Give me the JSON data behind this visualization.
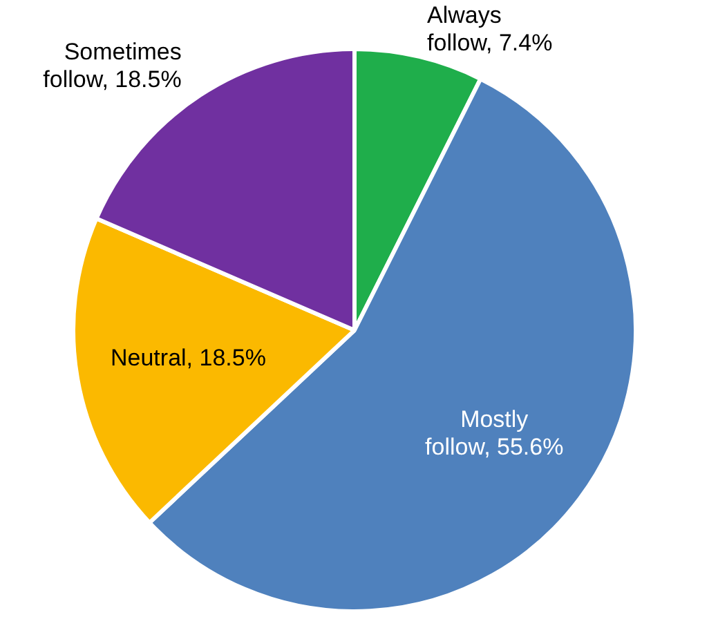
{
  "chart_data": {
    "type": "pie",
    "categories": [
      "Always follow",
      "Mostly follow",
      "Neutral",
      "Sometimes follow"
    ],
    "values": [
      7.4,
      55.6,
      18.5,
      18.5
    ],
    "value_labels": [
      "7.4%",
      "55.6%",
      "18.5%",
      "18.5%"
    ],
    "colors": [
      "#1fae4b",
      "#4f81bd",
      "#fbb900",
      "#7030a0"
    ],
    "legend": false
  }
}
